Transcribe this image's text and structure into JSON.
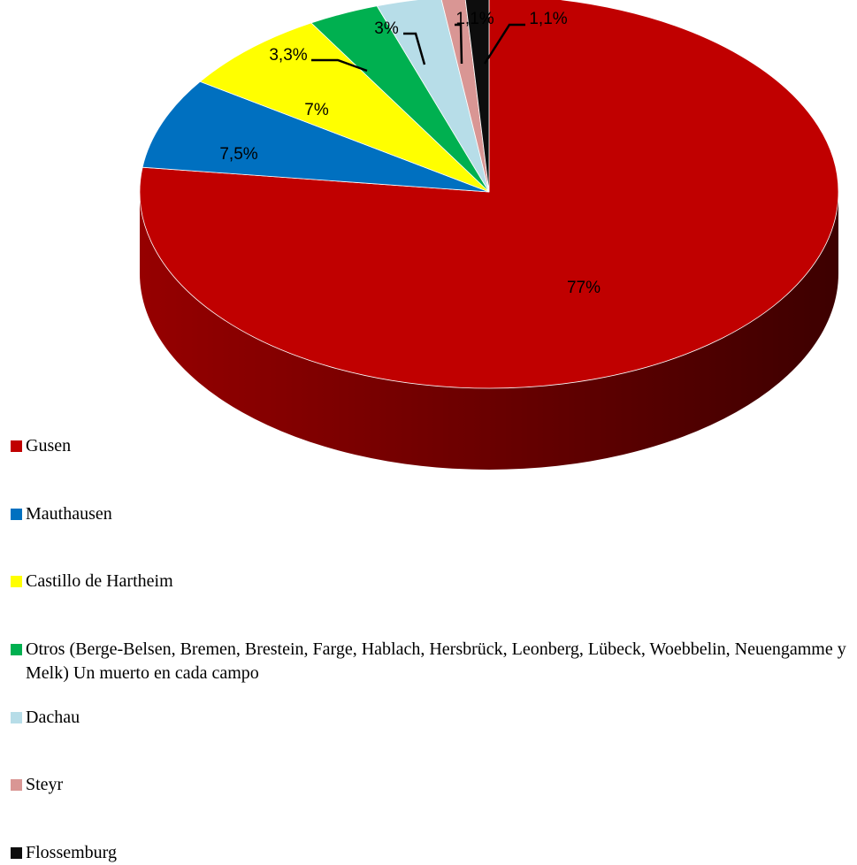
{
  "chart_data": {
    "type": "pie",
    "categories": [
      "Gusen",
      "Mauthausen",
      "Castillo de Hartheim",
      "Otros (Berge-Belsen, Bremen, Brestein, Farge, Hablach, Hersbrück, Leonberg, Lübeck, Woebbelin, Neuengamme y Melk) Un muerto en cada campo",
      "Dachau",
      "Steyr",
      "Flossemburg"
    ],
    "values": [
      77,
      7.5,
      7,
      3.3,
      3,
      1.1,
      1.1
    ],
    "value_labels": [
      "77%",
      "7,5%",
      "7%",
      "3,3%",
      "3%",
      "1,1%",
      "1,1%"
    ],
    "colors": [
      "#c00000",
      "#0070c0",
      "#ffff00",
      "#00b050",
      "#b7dde8",
      "#d99694",
      "#0d0d0d"
    ],
    "legend": "bottom-left"
  }
}
